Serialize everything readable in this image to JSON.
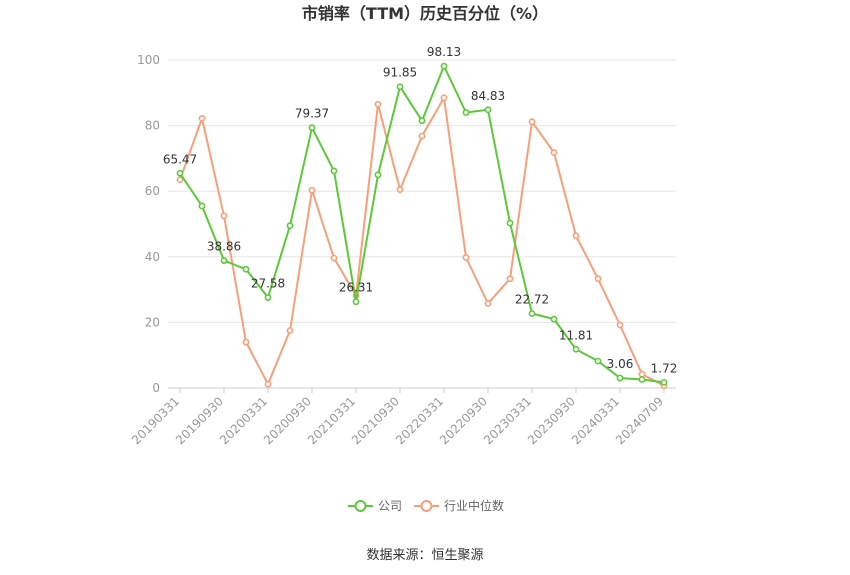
{
  "chart_data": {
    "type": "line",
    "title": "市销率（TTM）历史百分位（%）",
    "source": "数据来源：恒生聚源",
    "ylim": [
      0,
      100
    ],
    "yticks": [
      0,
      20,
      40,
      60,
      80,
      100
    ],
    "x": [
      "20190331",
      "20190630",
      "20190930",
      "20191231",
      "20200331",
      "20200630",
      "20200930",
      "20201231",
      "20210331",
      "20210630",
      "20210930",
      "20211231",
      "20220331",
      "20220630",
      "20220930",
      "20221231",
      "20230331",
      "20230630",
      "20230930",
      "20231231",
      "20240331",
      "20240630",
      "20240709"
    ],
    "xtick_labels": [
      "20190331",
      "20190930",
      "20200331",
      "20200930",
      "20210331",
      "20210930",
      "20220331",
      "20220930",
      "20230331",
      "20230930",
      "20240331",
      "20240709"
    ],
    "grid": true,
    "legend_position": "bottom",
    "series": [
      {
        "name": "公司",
        "color": "#5cc83a",
        "values": [
          65.47,
          55.5,
          38.86,
          36.2,
          27.58,
          49.5,
          79.37,
          66.2,
          26.31,
          65.0,
          91.85,
          81.5,
          98.13,
          84.0,
          84.83,
          50.3,
          22.72,
          21.0,
          11.81,
          8.2,
          3.06,
          2.6,
          1.72
        ],
        "labels": {
          "0": "65.47",
          "2": "38.86",
          "4": "27.58",
          "6": "79.37",
          "8": "26.31",
          "10": "91.85",
          "12": "98.13",
          "14": "84.83",
          "16": "22.72",
          "18": "11.81",
          "20": "3.06",
          "22": "1.72"
        }
      },
      {
        "name": "行业中位数",
        "color": "#f5a07a",
        "values": [
          63.5,
          82.2,
          52.5,
          14.0,
          1.2,
          17.5,
          60.3,
          39.6,
          28.2,
          86.5,
          60.5,
          76.8,
          88.5,
          39.8,
          25.8,
          33.3,
          81.2,
          71.8,
          46.4,
          33.3,
          19.2,
          4.2,
          0.7
        ]
      }
    ]
  }
}
